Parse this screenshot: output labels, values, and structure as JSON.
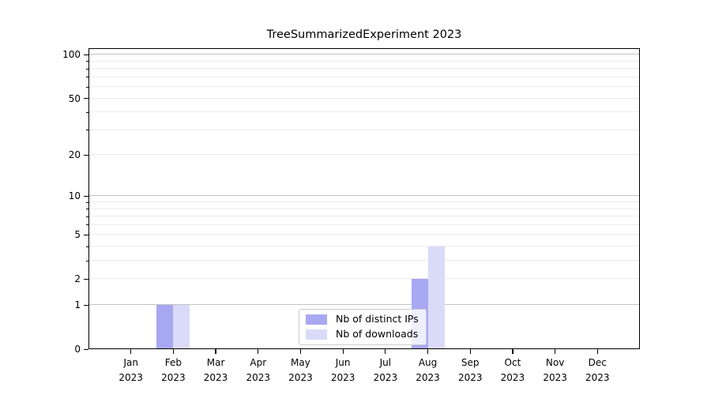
{
  "chart_data": {
    "type": "bar",
    "title": "TreeSummarizedExperiment 2023",
    "xlabel": "",
    "ylabel": "",
    "year_label": "2023",
    "categories": [
      "Jan",
      "Feb",
      "Mar",
      "Apr",
      "May",
      "Jun",
      "Jul",
      "Aug",
      "Sep",
      "Oct",
      "Nov",
      "Dec"
    ],
    "series": [
      {
        "name": "Nb of distinct IPs",
        "color": "#a8a8f2",
        "values": [
          0,
          1,
          0,
          0,
          0,
          0,
          0,
          2,
          0,
          0,
          0,
          0
        ]
      },
      {
        "name": "Nb of downloads",
        "color": "#dadaf9",
        "values": [
          0,
          1,
          0,
          0,
          0,
          0,
          0,
          4,
          0,
          0,
          0,
          0
        ]
      }
    ],
    "yscale": "log1p",
    "ylim": [
      0,
      111
    ],
    "yticks": [
      0,
      1,
      2,
      5,
      10,
      20,
      50,
      100
    ],
    "grid": {
      "on": true,
      "major_values": [
        1,
        10,
        100
      ],
      "minor_values": [
        2,
        3,
        4,
        5,
        6,
        7,
        8,
        9,
        20,
        30,
        40,
        50,
        60,
        70,
        80,
        90
      ],
      "major_color": "#c3c3c3",
      "minor_color": "#ebebeb"
    },
    "legend": {
      "position": "lower center",
      "background": "rgba(255,255,255,0.8)",
      "border_color": "#cccccc"
    },
    "axis_color": "#000000"
  }
}
